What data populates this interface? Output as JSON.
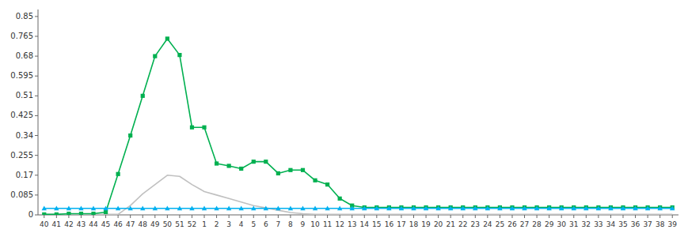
{
  "chart_data": {
    "type": "line",
    "categories": [
      "40",
      "41",
      "42",
      "43",
      "44",
      "45",
      "46",
      "47",
      "48",
      "49",
      "50",
      "51",
      "52",
      "1",
      "2",
      "3",
      "4",
      "5",
      "6",
      "7",
      "8",
      "9",
      "10",
      "11",
      "12",
      "13",
      "14",
      "15",
      "16",
      "17",
      "18",
      "19",
      "20",
      "21",
      "22",
      "23",
      "24",
      "25",
      "26",
      "27",
      "28",
      "29",
      "30",
      "31",
      "32",
      "33",
      "34",
      "35",
      "36",
      "37",
      "38",
      "39"
    ],
    "series": [
      {
        "color": "#c0c0c0",
        "marker": "none",
        "values": [
          0.002,
          0.002,
          0.002,
          0.002,
          0.002,
          0.002,
          0.002,
          0.04,
          0.09,
          0.13,
          0.17,
          0.165,
          0.13,
          0.1,
          0.085,
          0.07,
          0.055,
          0.04,
          0.03,
          0.02,
          0.01,
          0.005,
          0.002,
          0.002,
          0.002,
          0.002,
          0.002,
          0.002,
          0.002,
          0.002,
          0.002,
          0.002,
          0.002,
          0.002,
          0.002,
          0.002,
          0.002,
          0.002,
          0.002,
          0.002,
          0.002,
          0.002,
          0.002,
          0.002,
          0.002,
          0.002,
          0.002,
          0.002,
          0.002,
          0.002,
          0.002,
          0.002
        ]
      },
      {
        "color": "#00b050",
        "marker": "square",
        "values": [
          0.002,
          0.002,
          0.005,
          0.005,
          0.005,
          0.012,
          0.175,
          0.34,
          0.51,
          0.68,
          0.755,
          0.685,
          0.375,
          0.375,
          0.22,
          0.21,
          0.198,
          0.228,
          0.228,
          0.178,
          0.192,
          0.192,
          0.148,
          0.13,
          0.07,
          0.04,
          0.032,
          0.032,
          0.032,
          0.032,
          0.032,
          0.032,
          0.032,
          0.032,
          0.032,
          0.032,
          0.032,
          0.032,
          0.032,
          0.032,
          0.032,
          0.032,
          0.032,
          0.032,
          0.032,
          0.032,
          0.032,
          0.032,
          0.032,
          0.032,
          0.032,
          0.032
        ]
      },
      {
        "color": "#00b0f0",
        "marker": "triangle",
        "values": [
          0.028,
          0.028,
          0.028,
          0.028,
          0.028,
          0.028,
          0.028,
          0.028,
          0.028,
          0.028,
          0.028,
          0.028,
          0.028,
          0.028,
          0.028,
          0.028,
          0.028,
          0.028,
          0.028,
          0.028,
          0.028,
          0.028,
          0.028,
          0.028,
          0.028,
          0.028,
          0.028,
          0.028,
          0.028,
          0.028,
          0.028,
          0.028,
          0.028,
          0.028,
          0.028,
          0.028,
          0.028,
          0.028,
          0.028,
          0.028,
          0.028,
          0.028,
          0.028,
          0.028,
          0.028,
          0.028,
          0.028,
          0.028,
          0.028,
          0.028,
          0.028,
          0.028
        ]
      }
    ],
    "ylim": [
      0,
      0.88
    ],
    "yticks": [
      0,
      0.085,
      0.17,
      0.255,
      0.34,
      0.425,
      0.51,
      0.595,
      0.68,
      0.765,
      0.85
    ],
    "grid": false
  }
}
